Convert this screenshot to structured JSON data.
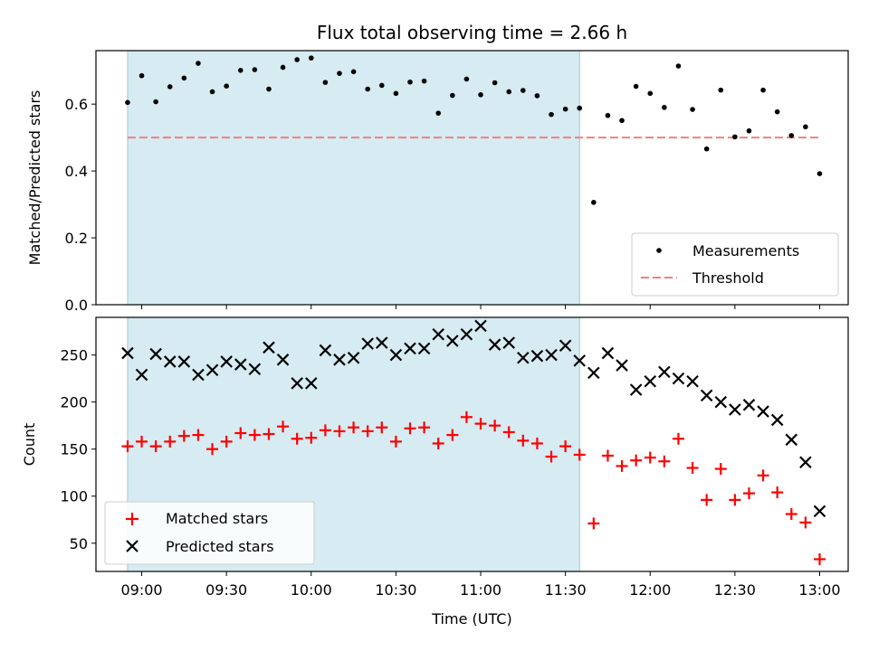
{
  "chart_data": [
    {
      "type": "scatter",
      "title": "Flux total observing time = 2.66 h",
      "xlabel": "",
      "ylabel": "Matched/Predicted stars",
      "ylim": [
        0,
        0.76
      ],
      "yticks": [
        0.0,
        0.2,
        0.4,
        0.6
      ],
      "ytick_labels": [
        "0.0",
        "0.2",
        "0.4",
        "0.6"
      ],
      "highlight_span": {
        "start": "08:55",
        "end": "11:35",
        "color": "#add8e6"
      },
      "legend": {
        "position": "lower right",
        "entries": [
          "Measurements",
          "Threshold"
        ]
      },
      "series": [
        {
          "name": "Measurements",
          "marker": "dot",
          "color": "#000000",
          "x": [
            "08:55",
            "09:00",
            "09:05",
            "09:10",
            "09:15",
            "09:20",
            "09:25",
            "09:30",
            "09:35",
            "09:40",
            "09:45",
            "09:50",
            "09:55",
            "10:00",
            "10:05",
            "10:10",
            "10:15",
            "10:20",
            "10:25",
            "10:30",
            "10:35",
            "10:40",
            "10:45",
            "10:50",
            "10:55",
            "11:00",
            "11:05",
            "11:10",
            "11:15",
            "11:20",
            "11:25",
            "11:30",
            "11:35",
            "11:40",
            "11:45",
            "11:50",
            "11:55",
            "12:00",
            "12:05",
            "12:10",
            "12:15",
            "12:20",
            "12:25",
            "12:30",
            "12:35",
            "12:40",
            "12:45",
            "12:50",
            "12:55",
            "13:00"
          ],
          "y": [
            0.605,
            0.685,
            0.607,
            0.652,
            0.678,
            0.722,
            0.637,
            0.654,
            0.701,
            0.703,
            0.645,
            0.71,
            0.733,
            0.738,
            0.665,
            0.692,
            0.697,
            0.645,
            0.656,
            0.632,
            0.666,
            0.669,
            0.573,
            0.626,
            0.675,
            0.628,
            0.664,
            0.637,
            0.641,
            0.625,
            0.569,
            0.585,
            0.588,
            0.306,
            0.566,
            0.551,
            0.653,
            0.632,
            0.59,
            0.714,
            0.584,
            0.466,
            0.642,
            0.502,
            0.52,
            0.642,
            0.577,
            0.506,
            0.532,
            0.392
          ]
        },
        {
          "name": "Threshold",
          "marker": "dashed-line",
          "color": "#f08080",
          "x": [
            "08:55",
            "13:00"
          ],
          "y": [
            0.5,
            0.5
          ]
        }
      ]
    },
    {
      "type": "scatter",
      "title": "",
      "xlabel": "Time (UTC)",
      "ylabel": "Count",
      "ylim": [
        20,
        290
      ],
      "yticks": [
        50,
        100,
        150,
        200,
        250
      ],
      "ytick_labels": [
        "50",
        "100",
        "150",
        "200",
        "250"
      ],
      "xticks": [
        "09:00",
        "09:30",
        "10:00",
        "10:30",
        "11:00",
        "11:30",
        "12:00",
        "12:30",
        "13:00"
      ],
      "highlight_span": {
        "start": "08:55",
        "end": "11:35",
        "color": "#add8e6"
      },
      "legend": {
        "position": "lower left",
        "entries": [
          "Matched stars",
          "Predicted stars"
        ]
      },
      "series": [
        {
          "name": "Matched stars",
          "marker": "plus",
          "color": "#ff0000",
          "x": [
            "08:55",
            "09:00",
            "09:05",
            "09:10",
            "09:15",
            "09:20",
            "09:25",
            "09:30",
            "09:35",
            "09:40",
            "09:45",
            "09:50",
            "09:55",
            "10:00",
            "10:05",
            "10:10",
            "10:15",
            "10:20",
            "10:25",
            "10:30",
            "10:35",
            "10:40",
            "10:45",
            "10:50",
            "10:55",
            "11:00",
            "11:05",
            "11:10",
            "11:15",
            "11:20",
            "11:25",
            "11:30",
            "11:35",
            "11:40",
            "11:45",
            "11:50",
            "11:55",
            "12:00",
            "12:05",
            "12:10",
            "12:15",
            "12:20",
            "12:25",
            "12:30",
            "12:35",
            "12:40",
            "12:45",
            "12:50",
            "12:55",
            "13:00"
          ],
          "y": [
            153,
            158,
            153,
            158,
            164,
            165,
            150,
            158,
            167,
            165,
            166,
            174,
            161,
            162,
            170,
            169,
            173,
            169,
            173,
            158,
            172,
            173,
            156,
            165,
            184,
            177,
            175,
            168,
            159,
            156,
            142,
            153,
            144,
            71,
            143,
            132,
            138,
            141,
            137,
            161,
            130,
            96,
            129,
            96,
            103,
            122,
            104,
            81,
            72,
            33
          ]
        },
        {
          "name": "Predicted stars",
          "marker": "x",
          "color": "#000000",
          "x": [
            "08:55",
            "09:00",
            "09:05",
            "09:10",
            "09:15",
            "09:20",
            "09:25",
            "09:30",
            "09:35",
            "09:40",
            "09:45",
            "09:50",
            "09:55",
            "10:00",
            "10:05",
            "10:10",
            "10:15",
            "10:20",
            "10:25",
            "10:30",
            "10:35",
            "10:40",
            "10:45",
            "10:50",
            "10:55",
            "11:00",
            "11:05",
            "11:10",
            "11:15",
            "11:20",
            "11:25",
            "11:30",
            "11:35",
            "11:40",
            "11:45",
            "11:50",
            "11:55",
            "12:00",
            "12:05",
            "12:10",
            "12:15",
            "12:20",
            "12:25",
            "12:30",
            "12:35",
            "12:40",
            "12:45",
            "12:50",
            "12:55",
            "13:00"
          ],
          "y": [
            252,
            229,
            251,
            243,
            243,
            229,
            234,
            243,
            240,
            235,
            258,
            245,
            220,
            220,
            255,
            245,
            247,
            262,
            263,
            250,
            257,
            257,
            272,
            265,
            272,
            281,
            261,
            263,
            247,
            249,
            250,
            260,
            244,
            231,
            252,
            239,
            213,
            222,
            232,
            225,
            222,
            207,
            200,
            192,
            197,
            190,
            181,
            160,
            136,
            84
          ]
        }
      ]
    }
  ]
}
